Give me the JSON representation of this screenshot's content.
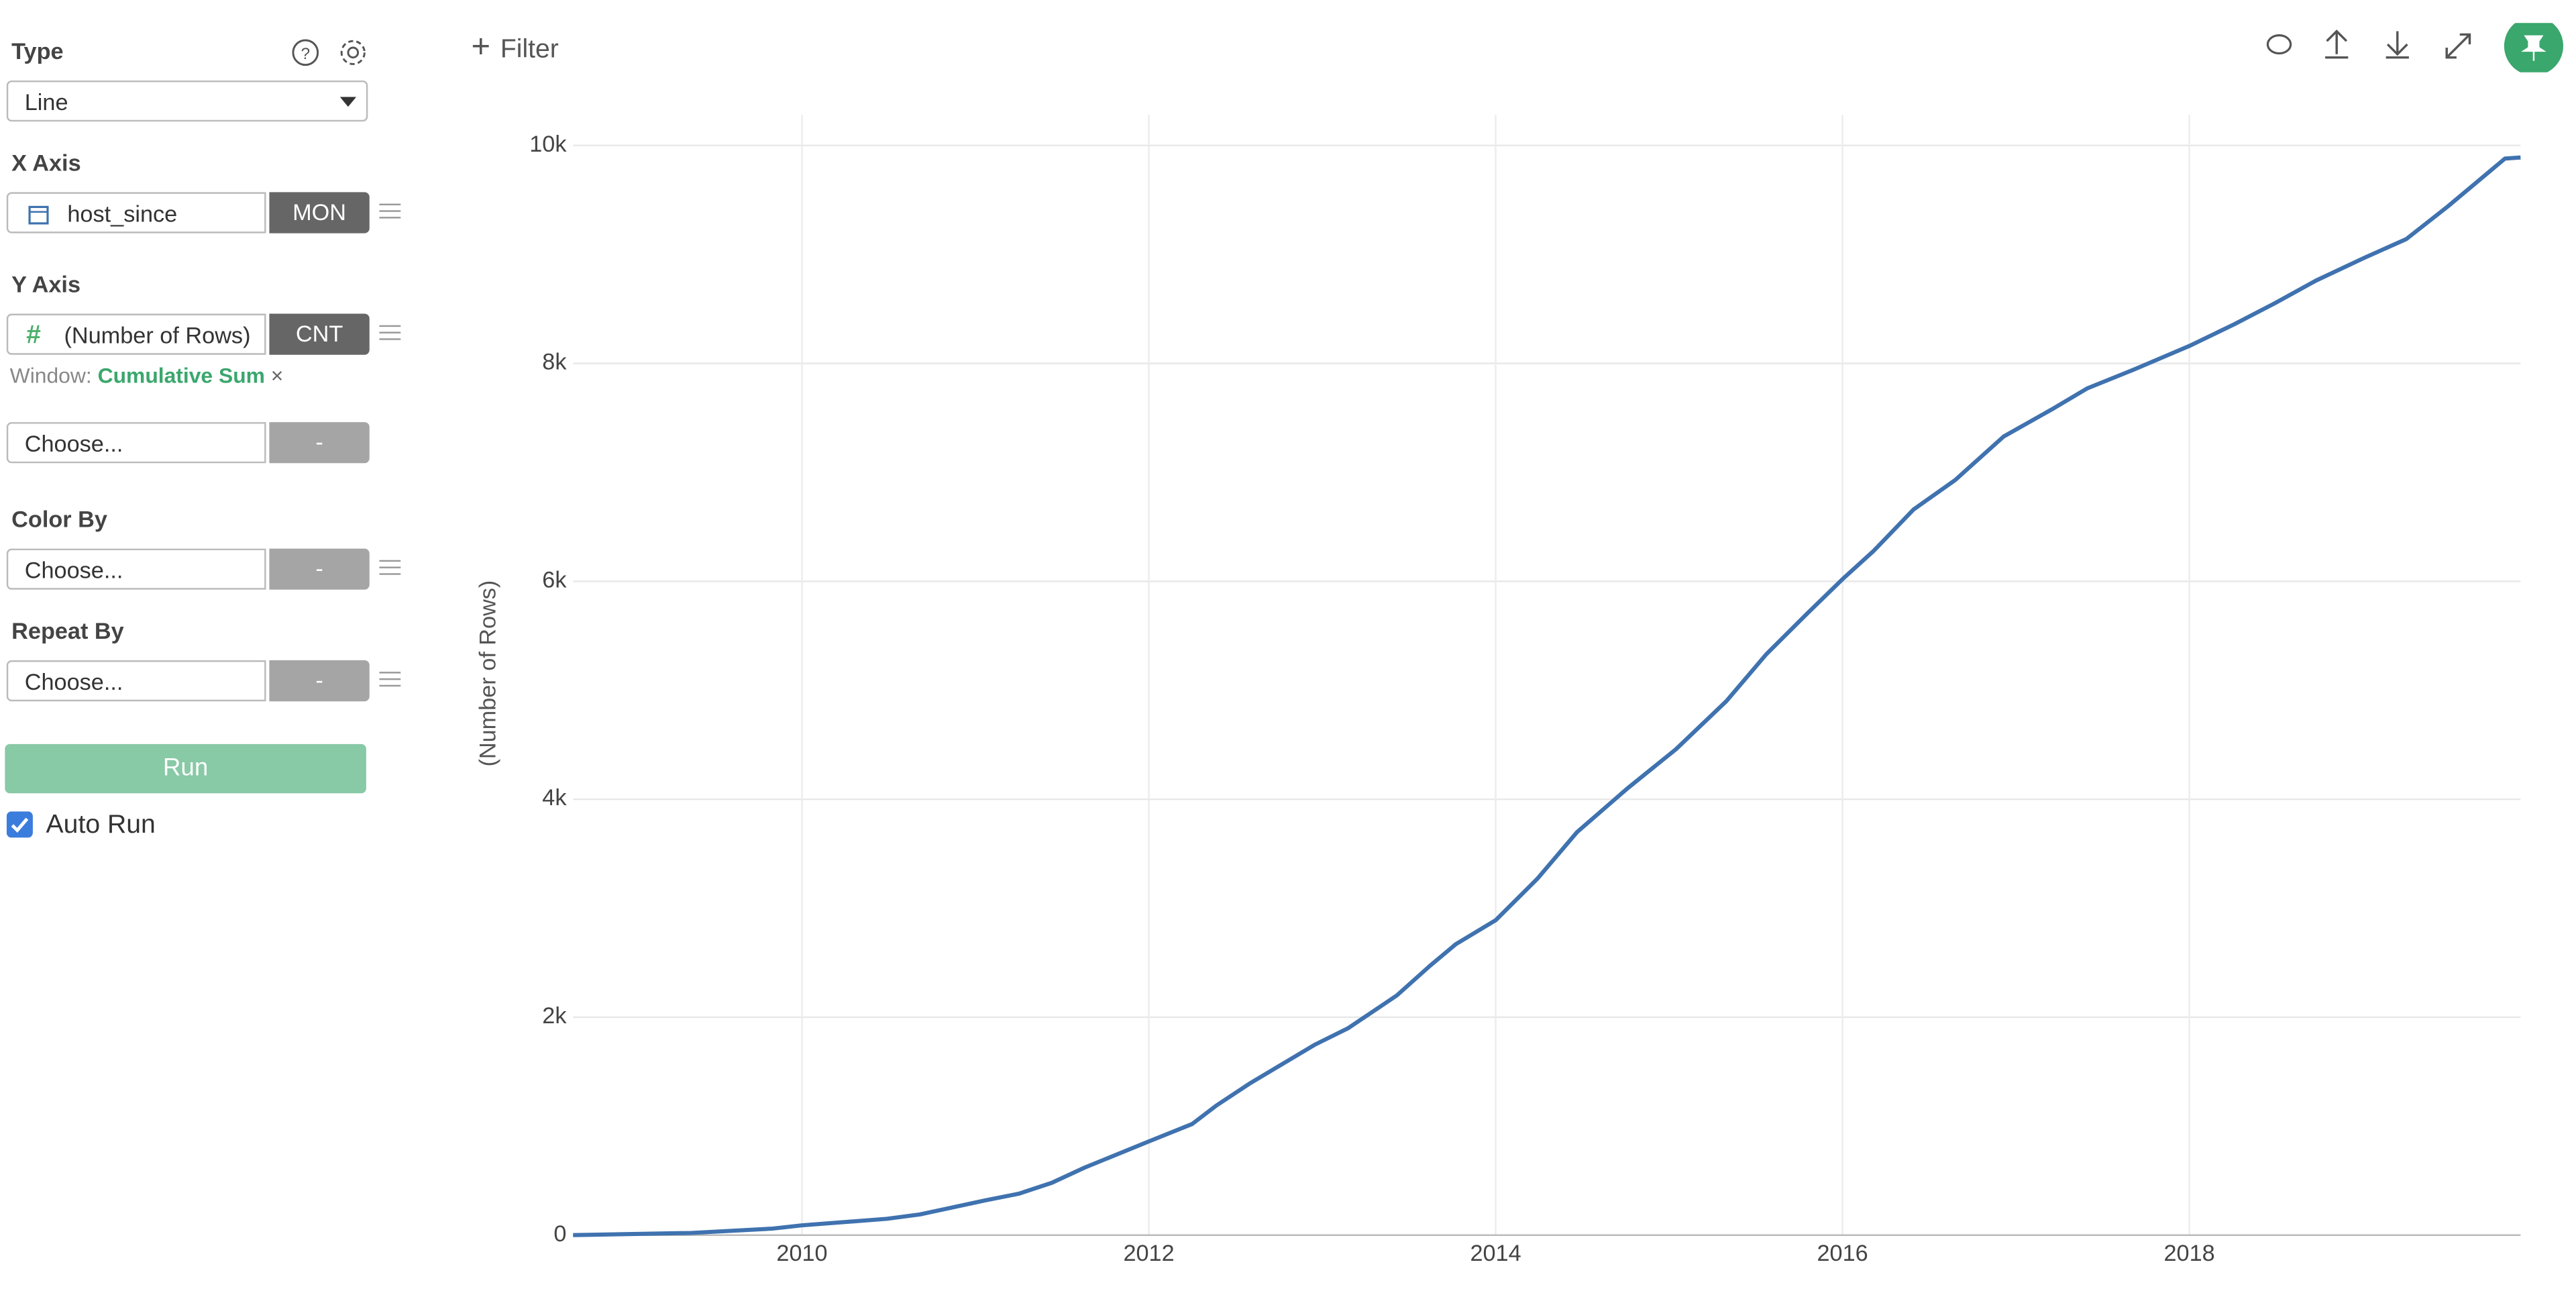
{
  "toolbar": {
    "filter": "Filter"
  },
  "sidebar": {
    "type_label": "Type",
    "type_value": "Line",
    "x_axis_label": "X Axis",
    "x_field": "host_since",
    "x_agg": "MON",
    "y_axis_label": "Y Axis",
    "y_field": "(Number of Rows)",
    "y_agg": "CNT",
    "window_label": "Window:",
    "window_value": "Cumulative Sum",
    "extra_choose": "Choose...",
    "extra_agg": "-",
    "color_by_label": "Color By",
    "color_choose": "Choose...",
    "color_agg": "-",
    "repeat_by_label": "Repeat By",
    "repeat_choose": "Choose...",
    "repeat_agg": "-",
    "run": "Run",
    "auto_run": "Auto Run"
  },
  "chart_data": {
    "type": "line",
    "y_label": "(Number of Rows)",
    "color": "#3f72af",
    "grid": true,
    "x": [
      2008.68,
      2009.36,
      2009.83,
      2010,
      2010.49,
      2010.68,
      2011.06,
      2011.25,
      2011.44,
      2011.63,
      2012,
      2012.25,
      2012.39,
      2012.58,
      2012.96,
      2013.15,
      2013.43,
      2013.62,
      2013.77,
      2014,
      2014.24,
      2014.47,
      2014.76,
      2015.04,
      2015.33,
      2015.56,
      2015.8,
      2016,
      2016.18,
      2016.41,
      2016.65,
      2016.93,
      2017.22,
      2017.41,
      2017.69,
      2018,
      2018.26,
      2018.49,
      2018.73,
      2019.01,
      2019.25,
      2019.49,
      2019.82,
      2019.91
    ],
    "values": [
      0,
      20,
      60,
      90,
      150,
      190,
      320,
      380,
      480,
      620,
      860,
      1020,
      1190,
      1390,
      1750,
      1900,
      2200,
      2470,
      2670,
      2890,
      3270,
      3700,
      4100,
      4460,
      4900,
      5330,
      5710,
      6020,
      6280,
      6660,
      6930,
      7330,
      7590,
      7770,
      7950,
      8160,
      8360,
      8550,
      8760,
      8970,
      9140,
      9440,
      9880,
      9890
    ],
    "xlim": [
      2008.68,
      2019.91
    ],
    "xticks": [
      2010,
      2012,
      2014,
      2016,
      2018
    ],
    "ylim": [
      0,
      10280
    ],
    "yticks": [
      0,
      {
        "value": 2000,
        "label": "2k"
      },
      {
        "value": 4000,
        "label": "4k"
      },
      {
        "value": 6000,
        "label": "6k"
      },
      {
        "value": 8000,
        "label": "8k"
      },
      {
        "value": 10000,
        "label": "10k"
      }
    ]
  }
}
